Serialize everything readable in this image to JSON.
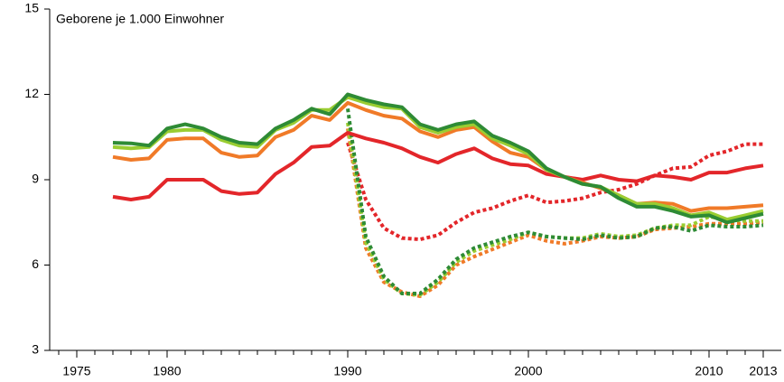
{
  "chart_data": {
    "type": "line",
    "ylabel": "Geborene je 1.000 Einwohner",
    "x": [
      1977,
      1978,
      1979,
      1980,
      1981,
      1982,
      1983,
      1984,
      1985,
      1986,
      1987,
      1988,
      1989,
      1990,
      1991,
      1992,
      1993,
      1994,
      1995,
      1996,
      1997,
      1998,
      1999,
      2000,
      2001,
      2002,
      2003,
      2004,
      2005,
      2006,
      2007,
      2008,
      2009,
      2010,
      2011,
      2012,
      2013
    ],
    "xlim": [
      1973.5,
      2014
    ],
    "xticks": [
      1975,
      1980,
      1990,
      2000,
      2010,
      2013
    ],
    "xminorticks": [
      1974,
      1975,
      1976,
      1977,
      1978,
      1979,
      1980,
      1981,
      1982,
      1983,
      1984,
      1985,
      1986,
      1987,
      1988,
      1989,
      1990,
      1991,
      1992,
      1993,
      1994,
      1995,
      1996,
      1997,
      1998,
      1999,
      2000,
      2001,
      2002,
      2003,
      2004,
      2005,
      2006,
      2007,
      2008,
      2009,
      2010,
      2011,
      2012,
      2013
    ],
    "ylim": [
      3,
      15
    ],
    "yticks": [
      3,
      6,
      9,
      12,
      15
    ],
    "series": [
      {
        "color": "#e3262a",
        "style": "dotted",
        "values": [
          null,
          null,
          null,
          null,
          null,
          null,
          null,
          null,
          null,
          null,
          null,
          null,
          null,
          10.3,
          8.3,
          7.3,
          6.95,
          6.9,
          7.05,
          7.5,
          7.85,
          8.0,
          8.25,
          8.45,
          8.2,
          8.25,
          8.35,
          8.55,
          8.65,
          8.85,
          9.15,
          9.4,
          9.45,
          9.85,
          10.0,
          10.25,
          10.25
        ]
      },
      {
        "color": "#f07a28",
        "style": "dotted",
        "values": [
          null,
          null,
          null,
          null,
          null,
          null,
          null,
          null,
          null,
          null,
          null,
          null,
          null,
          10.8,
          6.6,
          5.4,
          5.05,
          4.9,
          5.3,
          6.0,
          6.3,
          6.55,
          6.8,
          7.05,
          6.85,
          6.75,
          6.85,
          7.0,
          6.95,
          7.0,
          7.25,
          7.3,
          7.35,
          7.45,
          7.45,
          7.45,
          7.5
        ]
      },
      {
        "color": "#9acd32",
        "style": "dotted",
        "values": [
          null,
          null,
          null,
          null,
          null,
          null,
          null,
          null,
          null,
          null,
          null,
          null,
          null,
          11.0,
          6.8,
          5.5,
          5.0,
          4.95,
          5.4,
          6.1,
          6.5,
          6.7,
          6.9,
          7.15,
          7.0,
          6.95,
          6.95,
          7.1,
          7.0,
          7.05,
          7.3,
          7.4,
          7.4,
          7.7,
          7.6,
          7.55,
          7.55
        ]
      },
      {
        "color": "#2e8b35",
        "style": "dotted",
        "values": [
          null,
          null,
          null,
          null,
          null,
          null,
          null,
          null,
          null,
          null,
          null,
          null,
          null,
          11.5,
          7.0,
          5.6,
          5.0,
          5.0,
          5.5,
          6.2,
          6.6,
          6.8,
          7.0,
          7.15,
          7.0,
          6.95,
          6.9,
          7.05,
          6.95,
          7.0,
          7.3,
          7.35,
          7.2,
          7.4,
          7.35,
          7.35,
          7.4
        ]
      },
      {
        "color": "#e3262a",
        "style": "solid",
        "values": [
          8.4,
          8.3,
          8.4,
          9.0,
          9.0,
          9.0,
          8.6,
          8.5,
          8.55,
          9.2,
          9.6,
          10.15,
          10.2,
          10.65,
          10.45,
          10.3,
          10.1,
          9.8,
          9.6,
          9.9,
          10.1,
          9.75,
          9.55,
          9.5,
          9.2,
          9.1,
          9.0,
          9.15,
          9.0,
          8.95,
          9.15,
          9.1,
          9.0,
          9.25,
          9.25,
          9.4,
          9.5
        ]
      },
      {
        "color": "#f07a28",
        "style": "solid",
        "values": [
          9.8,
          9.7,
          9.75,
          10.4,
          10.45,
          10.45,
          9.95,
          9.8,
          9.85,
          10.5,
          10.75,
          11.25,
          11.1,
          11.7,
          11.45,
          11.25,
          11.15,
          10.7,
          10.5,
          10.75,
          10.85,
          10.35,
          9.95,
          9.8,
          9.35,
          9.1,
          8.9,
          8.7,
          8.45,
          8.15,
          8.2,
          8.15,
          7.9,
          8.0,
          8.0,
          8.05,
          8.1
        ]
      },
      {
        "color": "#9acd32",
        "style": "solid",
        "values": [
          10.15,
          10.1,
          10.15,
          10.7,
          10.75,
          10.75,
          10.4,
          10.2,
          10.15,
          10.75,
          11.0,
          11.45,
          11.45,
          11.9,
          11.7,
          11.55,
          11.5,
          10.85,
          10.65,
          10.85,
          10.95,
          10.45,
          10.2,
          9.9,
          9.35,
          9.1,
          8.85,
          8.75,
          8.45,
          8.15,
          8.15,
          8.0,
          7.75,
          7.85,
          7.6,
          7.75,
          7.9
        ]
      },
      {
        "color": "#2e8b35",
        "style": "solid",
        "values": [
          10.3,
          10.28,
          10.2,
          10.8,
          10.95,
          10.8,
          10.5,
          10.3,
          10.25,
          10.8,
          11.1,
          11.5,
          11.3,
          12.0,
          11.8,
          11.65,
          11.55,
          10.95,
          10.75,
          10.95,
          11.05,
          10.55,
          10.3,
          10.0,
          9.4,
          9.1,
          8.85,
          8.75,
          8.35,
          8.05,
          8.05,
          7.9,
          7.7,
          7.75,
          7.5,
          7.65,
          7.8
        ]
      }
    ]
  }
}
